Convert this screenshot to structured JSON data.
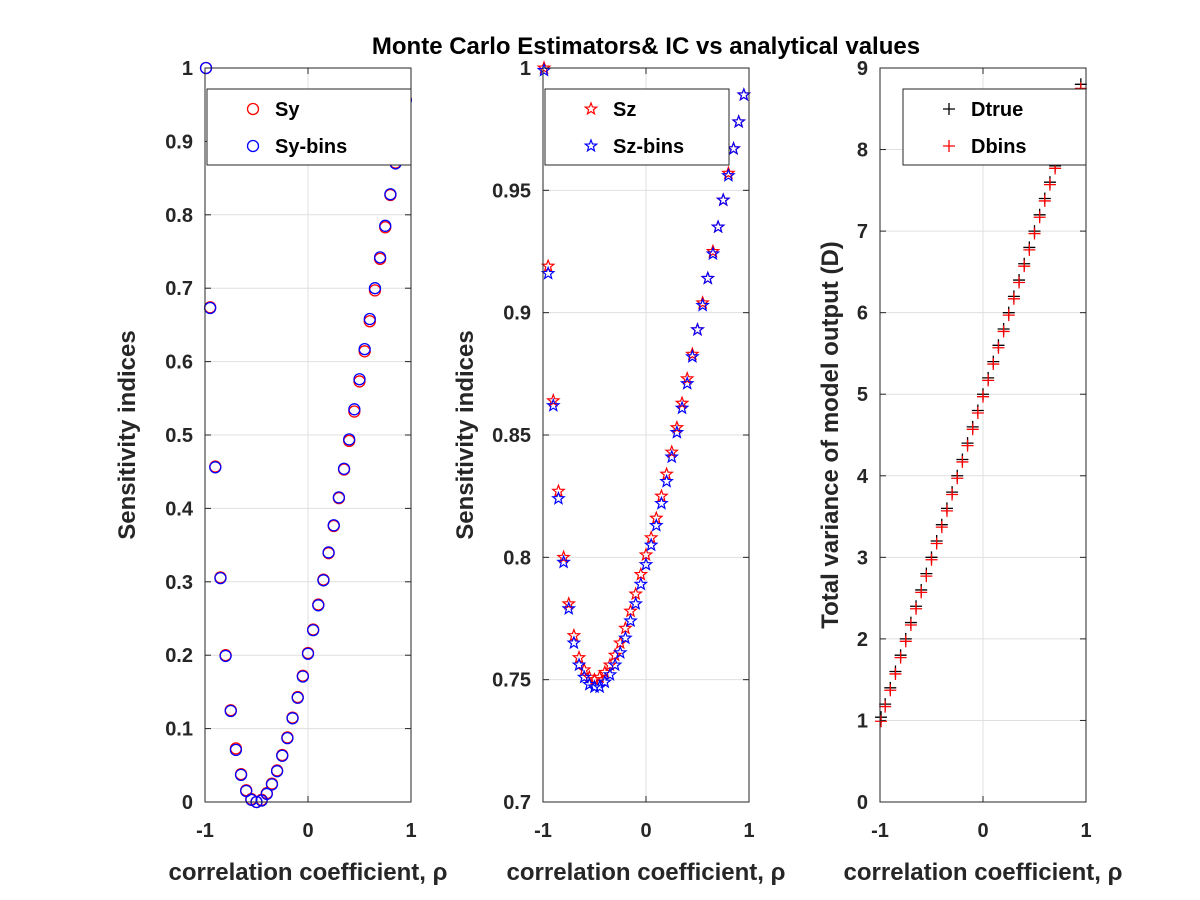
{
  "figure_title": "Monte Carlo Estimators& IC vs analytical values",
  "colors": {
    "red": "#ff0000",
    "blue": "#0000ff",
    "black": "#000000",
    "grid": "#dfdfdf",
    "axis": "#262626"
  },
  "chart_data": [
    {
      "type": "scatter",
      "xlabel": "correlation coefficient, ρ",
      "ylabel": "Sensitivity indices",
      "xlim": [
        -1,
        1
      ],
      "ylim": [
        0,
        1
      ],
      "xticks": [
        "-1",
        "0",
        "1"
      ],
      "yticks": [
        "0",
        "0.1",
        "0.2",
        "0.3",
        "0.4",
        "0.5",
        "0.6",
        "0.7",
        "0.8",
        "0.9",
        "1"
      ],
      "grid": true,
      "legend_position": "top-right",
      "series": [
        {
          "name": "Sy",
          "marker": "circle",
          "color": "#ff0000",
          "x": [
            -0.99,
            -0.95,
            -0.9,
            -0.85,
            -0.8,
            -0.75,
            -0.7,
            -0.65,
            -0.6,
            -0.55,
            -0.5,
            -0.45,
            -0.4,
            -0.35,
            -0.3,
            -0.25,
            -0.2,
            -0.15,
            -0.1,
            -0.05,
            0,
            0.05,
            0.1,
            0.15,
            0.2,
            0.25,
            0.3,
            0.35,
            0.4,
            0.45,
            0.5,
            0.55,
            0.6,
            0.65,
            0.7,
            0.75,
            0.8,
            0.85,
            0.9,
            0.95
          ],
          "y": [
            1.0,
            0.674,
            0.457,
            0.306,
            0.2,
            0.125,
            0.073,
            0.038,
            0.016,
            0.004,
            0.0,
            0.003,
            0.012,
            0.025,
            0.043,
            0.064,
            0.088,
            0.115,
            0.143,
            0.172,
            0.203,
            0.235,
            0.269,
            0.303,
            0.339,
            0.376,
            0.414,
            0.453,
            0.492,
            0.532,
            0.573,
            0.614,
            0.655,
            0.697,
            0.74,
            0.783,
            0.827,
            0.871,
            0.914,
            0.957
          ]
        },
        {
          "name": "Sy-bins",
          "marker": "circle",
          "color": "#0000ff",
          "x": [
            -0.99,
            -0.95,
            -0.9,
            -0.85,
            -0.8,
            -0.75,
            -0.7,
            -0.65,
            -0.6,
            -0.55,
            -0.5,
            -0.45,
            -0.4,
            -0.35,
            -0.3,
            -0.25,
            -0.2,
            -0.15,
            -0.1,
            -0.05,
            0,
            0.05,
            0.1,
            0.15,
            0.2,
            0.25,
            0.3,
            0.35,
            0.4,
            0.45,
            0.5,
            0.55,
            0.6,
            0.65,
            0.7,
            0.75,
            0.8,
            0.85,
            0.9,
            0.95
          ],
          "y": [
            1.0,
            0.673,
            0.456,
            0.305,
            0.199,
            0.124,
            0.071,
            0.037,
            0.015,
            0.003,
            0.0,
            0.002,
            0.011,
            0.024,
            0.042,
            0.063,
            0.087,
            0.114,
            0.142,
            0.171,
            0.202,
            0.234,
            0.268,
            0.302,
            0.34,
            0.377,
            0.415,
            0.454,
            0.494,
            0.535,
            0.576,
            0.617,
            0.658,
            0.7,
            0.742,
            0.785,
            0.828,
            0.87,
            0.913,
            0.956
          ]
        }
      ]
    },
    {
      "type": "scatter",
      "xlabel": "correlation coefficient, ρ",
      "ylabel": "Sensitivity indices",
      "xlim": [
        -1,
        1
      ],
      "ylim": [
        0.7,
        1
      ],
      "xticks": [
        "-1",
        "0",
        "1"
      ],
      "yticks": [
        "0.7",
        "0.75",
        "0.8",
        "0.85",
        "0.9",
        "0.95",
        "1"
      ],
      "grid": true,
      "legend_position": "top-right",
      "series": [
        {
          "name": "Sz",
          "marker": "pentagram",
          "color": "#ff0000",
          "x": [
            -0.99,
            -0.95,
            -0.9,
            -0.85,
            -0.8,
            -0.75,
            -0.7,
            -0.65,
            -0.6,
            -0.55,
            -0.5,
            -0.45,
            -0.4,
            -0.35,
            -0.3,
            -0.25,
            -0.2,
            -0.15,
            -0.1,
            -0.05,
            0,
            0.05,
            0.1,
            0.15,
            0.2,
            0.25,
            0.3,
            0.35,
            0.4,
            0.45,
            0.5,
            0.55,
            0.6,
            0.65,
            0.7,
            0.75,
            0.8,
            0.85,
            0.9,
            0.95
          ],
          "y": [
            1.0,
            0.919,
            0.864,
            0.827,
            0.8,
            0.781,
            0.768,
            0.759,
            0.754,
            0.751,
            0.75,
            0.751,
            0.753,
            0.756,
            0.76,
            0.765,
            0.771,
            0.778,
            0.785,
            0.793,
            0.801,
            0.808,
            0.816,
            0.825,
            0.834,
            0.843,
            0.853,
            0.863,
            0.873,
            0.883,
            0.893,
            0.904,
            0.914,
            0.925,
            0.935,
            0.946,
            0.957,
            0.967,
            0.978,
            0.989
          ]
        },
        {
          "name": "Sz-bins",
          "marker": "pentagram",
          "color": "#0000ff",
          "x": [
            -0.99,
            -0.95,
            -0.9,
            -0.85,
            -0.8,
            -0.75,
            -0.7,
            -0.65,
            -0.6,
            -0.55,
            -0.5,
            -0.45,
            -0.4,
            -0.35,
            -0.3,
            -0.25,
            -0.2,
            -0.15,
            -0.1,
            -0.05,
            0,
            0.05,
            0.1,
            0.15,
            0.2,
            0.25,
            0.3,
            0.35,
            0.4,
            0.45,
            0.5,
            0.55,
            0.6,
            0.65,
            0.7,
            0.75,
            0.8,
            0.85,
            0.9,
            0.95
          ],
          "y": [
            0.999,
            0.916,
            0.862,
            0.824,
            0.798,
            0.779,
            0.765,
            0.756,
            0.751,
            0.748,
            0.747,
            0.747,
            0.749,
            0.752,
            0.756,
            0.761,
            0.767,
            0.774,
            0.781,
            0.789,
            0.797,
            0.805,
            0.813,
            0.822,
            0.831,
            0.841,
            0.851,
            0.861,
            0.871,
            0.882,
            0.893,
            0.903,
            0.914,
            0.924,
            0.935,
            0.946,
            0.956,
            0.967,
            0.978,
            0.989
          ]
        }
      ]
    },
    {
      "type": "scatter",
      "xlabel": "correlation coefficient, ρ",
      "ylabel": "Total variance of model output (D)",
      "xlim": [
        -1,
        1
      ],
      "ylim": [
        0,
        9
      ],
      "xticks": [
        "-1",
        "0",
        "1"
      ],
      "yticks": [
        "0",
        "1",
        "2",
        "3",
        "4",
        "5",
        "6",
        "7",
        "8",
        "9"
      ],
      "grid": true,
      "legend_position": "top-right",
      "series": [
        {
          "name": "Dtrue",
          "marker": "plus",
          "color": "#000000",
          "x": [
            -0.99,
            -0.95,
            -0.9,
            -0.85,
            -0.8,
            -0.75,
            -0.7,
            -0.65,
            -0.6,
            -0.55,
            -0.5,
            -0.45,
            -0.4,
            -0.35,
            -0.3,
            -0.25,
            -0.2,
            -0.15,
            -0.1,
            -0.05,
            0,
            0.05,
            0.1,
            0.15,
            0.2,
            0.25,
            0.3,
            0.35,
            0.4,
            0.45,
            0.5,
            0.55,
            0.6,
            0.65,
            0.7,
            0.75,
            0.8,
            0.85,
            0.9,
            0.95
          ],
          "y": [
            1.04,
            1.2,
            1.4,
            1.6,
            1.8,
            2.0,
            2.2,
            2.4,
            2.6,
            2.8,
            3.0,
            3.2,
            3.4,
            3.6,
            3.8,
            4.0,
            4.2,
            4.4,
            4.6,
            4.8,
            5.0,
            5.2,
            5.4,
            5.6,
            5.8,
            6.0,
            6.2,
            6.4,
            6.6,
            6.8,
            7.0,
            7.2,
            7.4,
            7.6,
            7.8,
            8.0,
            8.2,
            8.4,
            8.6,
            8.8
          ]
        },
        {
          "name": "Dbins",
          "marker": "plus",
          "color": "#ff0000",
          "x": [
            -0.99,
            -0.95,
            -0.9,
            -0.85,
            -0.8,
            -0.75,
            -0.7,
            -0.65,
            -0.6,
            -0.55,
            -0.5,
            -0.45,
            -0.4,
            -0.35,
            -0.3,
            -0.25,
            -0.2,
            -0.15,
            -0.1,
            -0.05,
            0,
            0.05,
            0.1,
            0.15,
            0.2,
            0.25,
            0.3,
            0.35,
            0.4,
            0.45,
            0.5,
            0.55,
            0.6,
            0.65,
            0.7,
            0.75,
            0.8,
            0.85,
            0.9,
            0.95
          ],
          "y": [
            0.99,
            1.17,
            1.37,
            1.57,
            1.77,
            1.97,
            2.17,
            2.37,
            2.57,
            2.77,
            2.97,
            3.17,
            3.37,
            3.57,
            3.77,
            3.97,
            4.17,
            4.37,
            4.57,
            4.77,
            4.97,
            5.17,
            5.37,
            5.57,
            5.77,
            5.97,
            6.17,
            6.37,
            6.57,
            6.77,
            6.97,
            7.17,
            7.37,
            7.57,
            7.77,
            7.97,
            8.17,
            8.37,
            8.56,
            8.75
          ]
        }
      ]
    }
  ]
}
